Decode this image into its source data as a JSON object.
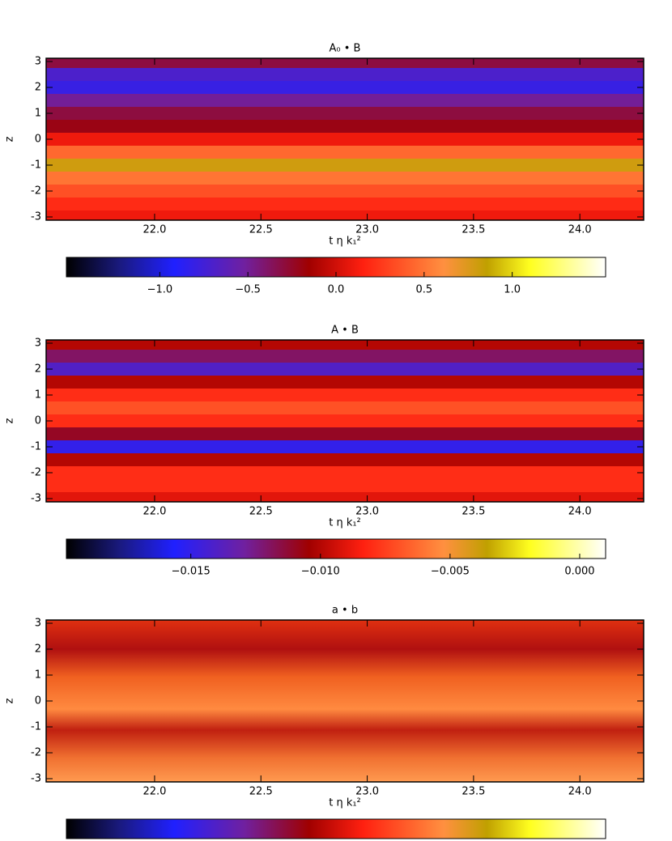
{
  "chart_data": [
    {
      "type": "heatmap",
      "title": "A₀ • B",
      "xlabel": "t η k₁²",
      "ylabel": "z",
      "xlim": [
        21.49,
        24.3
      ],
      "ylim": [
        -3.125,
        3.125
      ],
      "xticks": [
        {
          "value": 22,
          "label": "22.0"
        },
        {
          "value": 22.5,
          "label": "22.5"
        },
        {
          "value": 23,
          "label": "23.0"
        },
        {
          "value": 23.5,
          "label": "23.5"
        },
        {
          "value": 24,
          "label": "24.0"
        }
      ],
      "yticks": [
        -3,
        -2,
        -1,
        0,
        1,
        2,
        3
      ],
      "z": [
        -3,
        -2.5,
        -2,
        -1.5,
        -1,
        -0.5,
        0,
        0.5,
        1,
        1.5,
        2,
        2.5,
        3
      ],
      "values": [
        0.1,
        0.2,
        0.35,
        0.5,
        0.8,
        0.45,
        0.1,
        -0.2,
        -0.3,
        -0.5,
        -0.8,
        -0.7,
        -0.3
      ],
      "clim": [
        -1.53,
        1.53
      ],
      "cticks": [
        {
          "value": -1,
          "label": "−1.0"
        },
        {
          "value": -0.5,
          "label": "−0.5"
        },
        {
          "value": 0,
          "label": "0.0"
        },
        {
          "value": 0.5,
          "label": "0.5"
        },
        {
          "value": 1,
          "label": "1.0"
        }
      ]
    },
    {
      "type": "heatmap",
      "title": "A • B",
      "xlabel": "t η k₁²",
      "ylabel": "z",
      "xlim": [
        21.49,
        24.3
      ],
      "ylim": [
        -3.125,
        3.125
      ],
      "xticks": [
        {
          "value": 22,
          "label": "22.0"
        },
        {
          "value": 22.5,
          "label": "22.5"
        },
        {
          "value": 23,
          "label": "23.0"
        },
        {
          "value": 23.5,
          "label": "23.5"
        },
        {
          "value": 24,
          "label": "24.0"
        }
      ],
      "yticks": [
        -3,
        -2,
        -1,
        0,
        1,
        2,
        3
      ],
      "z": [
        -3,
        -2.5,
        -2,
        -1.5,
        -1,
        -0.5,
        0,
        0.5,
        1,
        1.5,
        2,
        2.5,
        3
      ],
      "values": [
        -0.009,
        -0.008,
        -0.008,
        -0.01,
        -0.015,
        -0.011,
        -0.008,
        -0.007,
        -0.008,
        -0.01,
        -0.014,
        -0.012,
        -0.01
      ],
      "clim": [
        -0.0198,
        0.001
      ],
      "cticks": [
        {
          "value": -0.015,
          "label": "−0.015"
        },
        {
          "value": -0.01,
          "label": "−0.010"
        },
        {
          "value": -0.005,
          "label": "−0.005"
        },
        {
          "value": 0,
          "label": "0.000"
        }
      ]
    },
    {
      "type": "heatmap",
      "title": "a • b",
      "xlabel": "t η k₁²",
      "ylabel": "z",
      "xlim": [
        21.49,
        24.3
      ],
      "ylim": [
        -3.125,
        3.125
      ],
      "xticks": [
        {
          "value": 22,
          "label": "22.0"
        },
        {
          "value": 22.5,
          "label": "22.5"
        },
        {
          "value": 23,
          "label": "23.0"
        },
        {
          "value": 23.5,
          "label": "23.5"
        },
        {
          "value": 24,
          "label": "24.0"
        }
      ],
      "yticks": [
        -3,
        -2,
        -1,
        0,
        1,
        2,
        3
      ]
    }
  ]
}
